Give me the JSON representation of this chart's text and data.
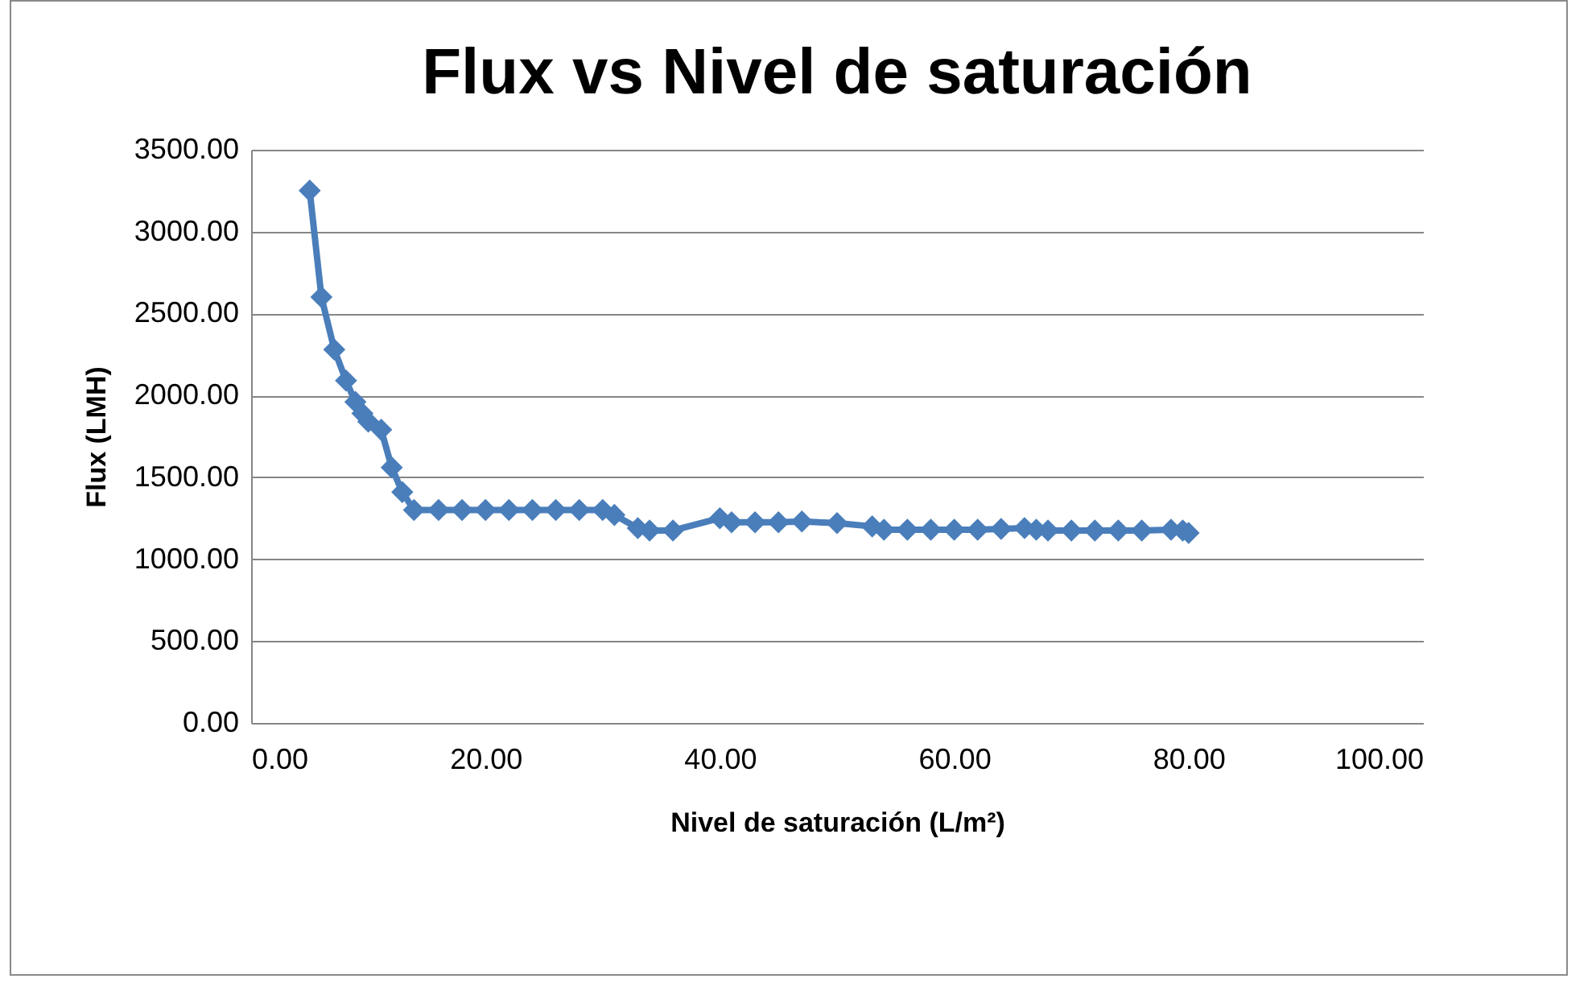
{
  "chart_data": {
    "type": "line",
    "title": "Flux vs Nivel de saturación",
    "xlabel": "Nivel de saturación (L/m²)",
    "ylabel": "Flux (LMH)",
    "x": [
      5.0,
      6.0,
      7.1,
      8.1,
      8.9,
      9.5,
      10.0,
      11.1,
      12.0,
      12.9,
      13.9,
      16.0,
      18.0,
      20.0,
      22.0,
      24.0,
      26.0,
      28.0,
      30.0,
      31.0,
      33.0,
      34.0,
      36.0,
      40.0,
      41.0,
      43.0,
      45.0,
      47.0,
      50.0,
      53.0,
      54.0,
      56.0,
      58.0,
      60.0,
      62.0,
      64.0,
      66.0,
      67.0,
      68.0,
      70.0,
      72.0,
      74.0,
      76.0,
      78.5,
      79.5,
      80.0
    ],
    "series": [
      {
        "color": "#4a7ebb",
        "values": [
          3250,
          2600,
          2280,
          2090,
          1960,
          1890,
          1840,
          1790,
          1560,
          1410,
          1300,
          1300,
          1300,
          1300,
          1300,
          1300,
          1300,
          1300,
          1300,
          1270,
          1190,
          1175,
          1175,
          1250,
          1225,
          1225,
          1225,
          1230,
          1220,
          1200,
          1180,
          1180,
          1180,
          1180,
          1180,
          1185,
          1190,
          1180,
          1175,
          1175,
          1175,
          1175,
          1175,
          1180,
          1175,
          1160
        ]
      }
    ],
    "xlim": [
      0,
      100
    ],
    "xticks": [
      {
        "value": 0,
        "label": "0.00"
      },
      {
        "value": 20,
        "label": "20.00"
      },
      {
        "value": 40,
        "label": "40.00"
      },
      {
        "value": 60,
        "label": "60.00"
      },
      {
        "value": 80,
        "label": "80.00"
      },
      {
        "value": 100,
        "label": "100.00"
      }
    ],
    "ylim": [
      0,
      3500
    ],
    "yticks": [
      {
        "value": 0,
        "label": "0.00"
      },
      {
        "value": 500,
        "label": "500.00"
      },
      {
        "value": 1000,
        "label": "1000.00"
      },
      {
        "value": 1500,
        "label": "1500.00"
      },
      {
        "value": 2000,
        "label": "2000.00"
      },
      {
        "value": 2500,
        "label": "2500.00"
      },
      {
        "value": 3000,
        "label": "3000.00"
      },
      {
        "value": 3500,
        "label": "3500.00"
      }
    ],
    "grid": "y",
    "marker": "diamond",
    "line_style": "solid"
  }
}
